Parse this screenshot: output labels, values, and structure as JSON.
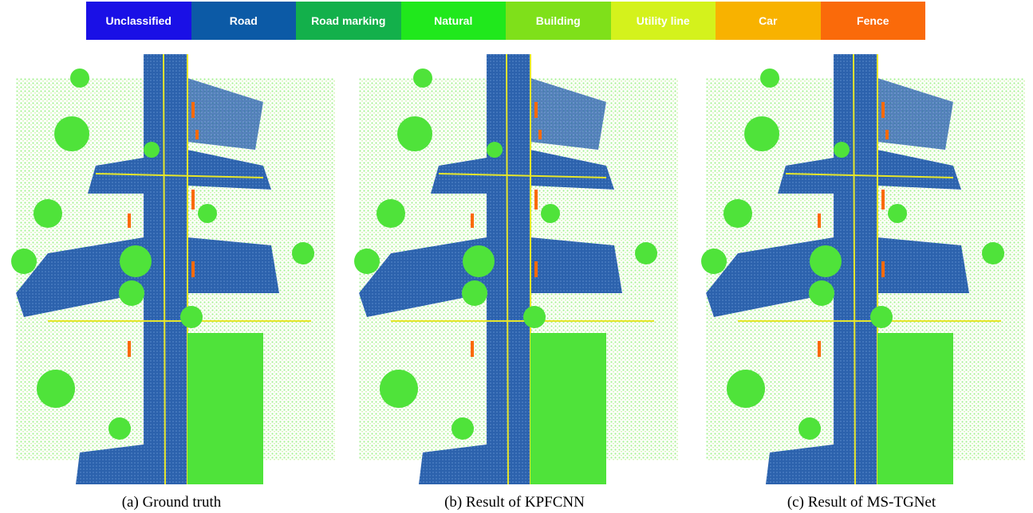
{
  "legend": [
    {
      "label": "Unclassified",
      "color": "#1a10e6"
    },
    {
      "label": "Road",
      "color": "#0c5aa6"
    },
    {
      "label": "Road marking",
      "color": "#13b04b"
    },
    {
      "label": "Natural",
      "color": "#20e81c"
    },
    {
      "label": "Building",
      "color": "#7fe01a"
    },
    {
      "label": "Utility line",
      "color": "#d4f21c"
    },
    {
      "label": "Car",
      "color": "#f8b200"
    },
    {
      "label": "Fence",
      "color": "#fa6a0a"
    }
  ],
  "panels": [
    {
      "caption": "(a) Ground truth"
    },
    {
      "caption": "(b) Result of KPFCNN"
    },
    {
      "caption": "(c) Result of MS-TGNet"
    }
  ]
}
